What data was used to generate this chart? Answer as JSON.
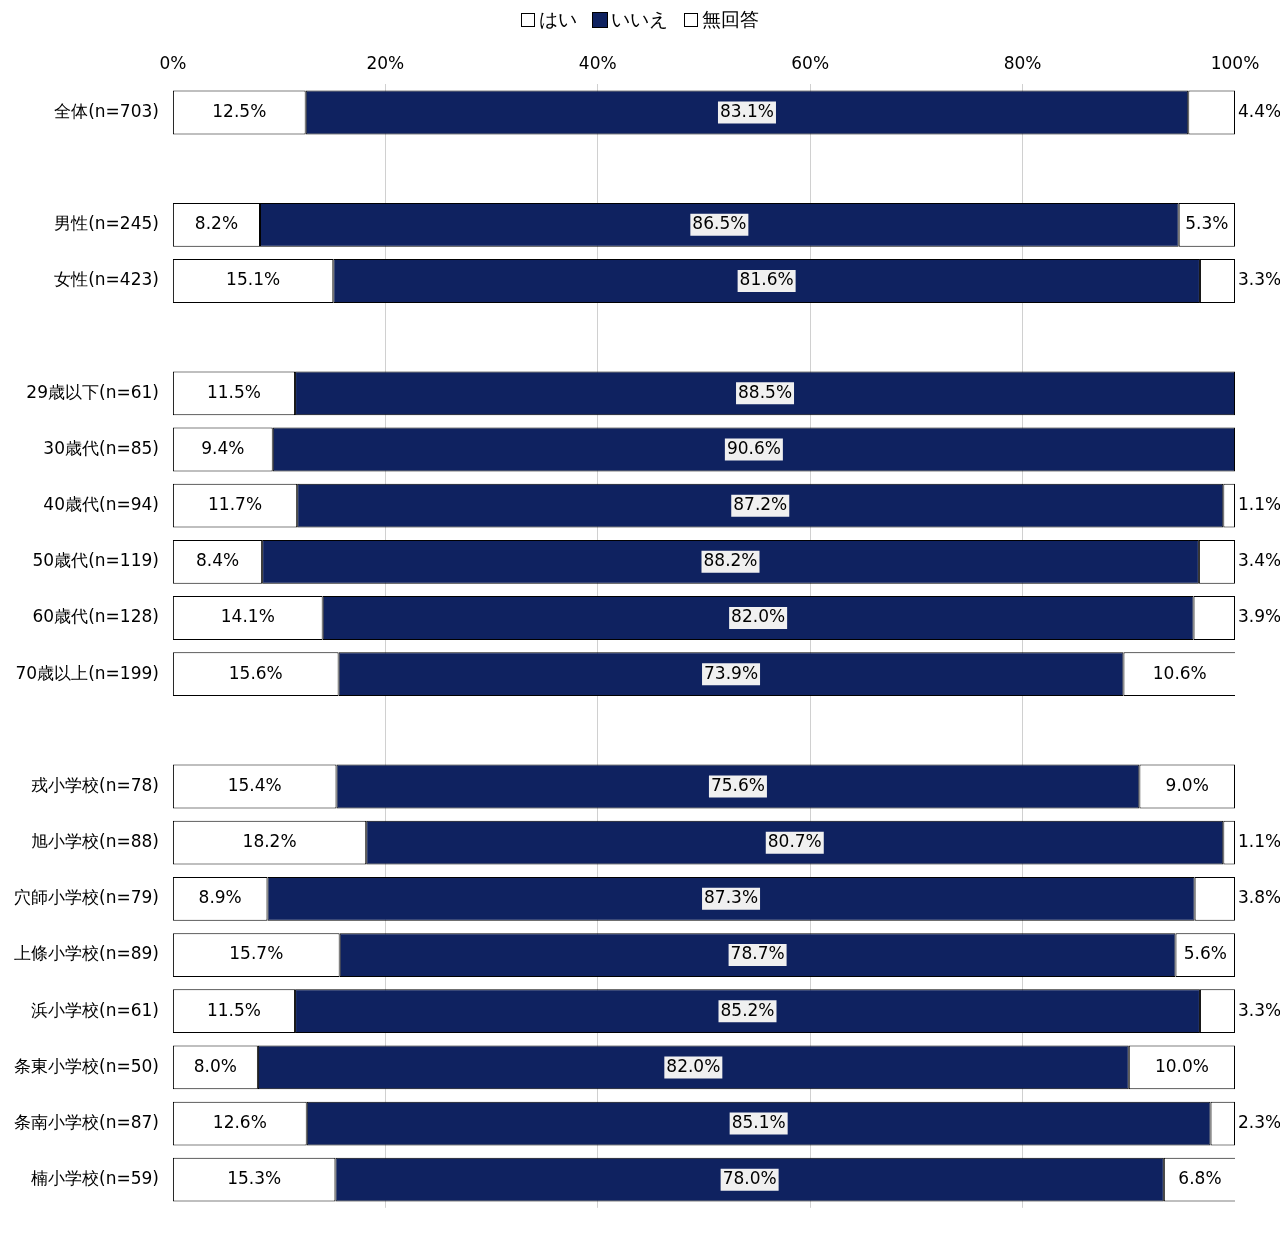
{
  "chart_data": {
    "type": "bar",
    "orientation": "horizontal",
    "stacked": true,
    "legend": "top",
    "grid": "x",
    "categories": [
      "全体(n=703)",
      null,
      "男性(n=245)",
      "女性(n=423)",
      null,
      "29歳以下(n=61)",
      "30歳代(n=85)",
      "40歳代(n=94)",
      "50歳代(n=119)",
      "60歳代(n=128)",
      "70歳以上(n=199)",
      null,
      "戎小学校(n=78)",
      "旭小学校(n=88)",
      "穴師小学校(n=79)",
      "上條小学校(n=89)",
      "浜小学校(n=61)",
      "条東小学校(n=50)",
      "条南小学校(n=87)",
      "楠小学校(n=59)"
    ],
    "xlim": [
      0,
      100
    ],
    "xticks": [
      {
        "value": 0,
        "label": "0%"
      },
      {
        "value": 20,
        "label": "20%"
      },
      {
        "value": 40,
        "label": "40%"
      },
      {
        "value": 60,
        "label": "60%"
      },
      {
        "value": 80,
        "label": "80%"
      },
      {
        "value": 100,
        "label": "100%"
      }
    ],
    "series": [
      {
        "name": "はい",
        "color": "#ffffff",
        "values": [
          12.5,
          null,
          8.2,
          15.1,
          null,
          11.5,
          9.4,
          11.7,
          8.4,
          14.1,
          15.6,
          null,
          15.4,
          18.2,
          8.9,
          15.7,
          11.5,
          8.0,
          12.6,
          15.3
        ],
        "value_labels": [
          "12.5%",
          null,
          "8.2%",
          "15.1%",
          null,
          "11.5%",
          "9.4%",
          "11.7%",
          "8.4%",
          "14.1%",
          "15.6%",
          null,
          "15.4%",
          "18.2%",
          "8.9%",
          "15.7%",
          "11.5%",
          "8.0%",
          "12.6%",
          "15.3%"
        ]
      },
      {
        "name": "いいえ",
        "color": "#0f2260",
        "values": [
          83.1,
          null,
          86.5,
          81.6,
          null,
          88.5,
          90.6,
          87.2,
          88.2,
          82.0,
          73.9,
          null,
          75.6,
          80.7,
          87.3,
          78.7,
          85.2,
          82.0,
          85.1,
          78.0
        ],
        "value_labels": [
          "83.1%",
          null,
          "86.5%",
          "81.6%",
          null,
          "88.5%",
          "90.6%",
          "87.2%",
          "88.2%",
          "82.0%",
          "73.9%",
          null,
          "75.6%",
          "80.7%",
          "87.3%",
          "78.7%",
          "85.2%",
          "82.0%",
          "85.1%",
          "78.0%"
        ]
      },
      {
        "name": "無回答",
        "color": "#ffffff",
        "values": [
          4.4,
          null,
          5.3,
          3.3,
          null,
          0,
          0,
          1.1,
          3.4,
          3.9,
          10.6,
          null,
          9.0,
          1.1,
          3.8,
          5.6,
          3.3,
          10.0,
          2.3,
          6.8
        ],
        "value_labels": [
          "4.4%",
          null,
          "5.3%",
          "3.3%",
          null,
          null,
          null,
          "1.1%",
          "3.4%",
          "3.9%",
          "10.6%",
          null,
          "9.0%",
          "1.1%",
          "3.8%",
          "5.6%",
          "3.3%",
          "10.0%",
          "2.3%",
          "6.8%"
        ]
      }
    ]
  }
}
